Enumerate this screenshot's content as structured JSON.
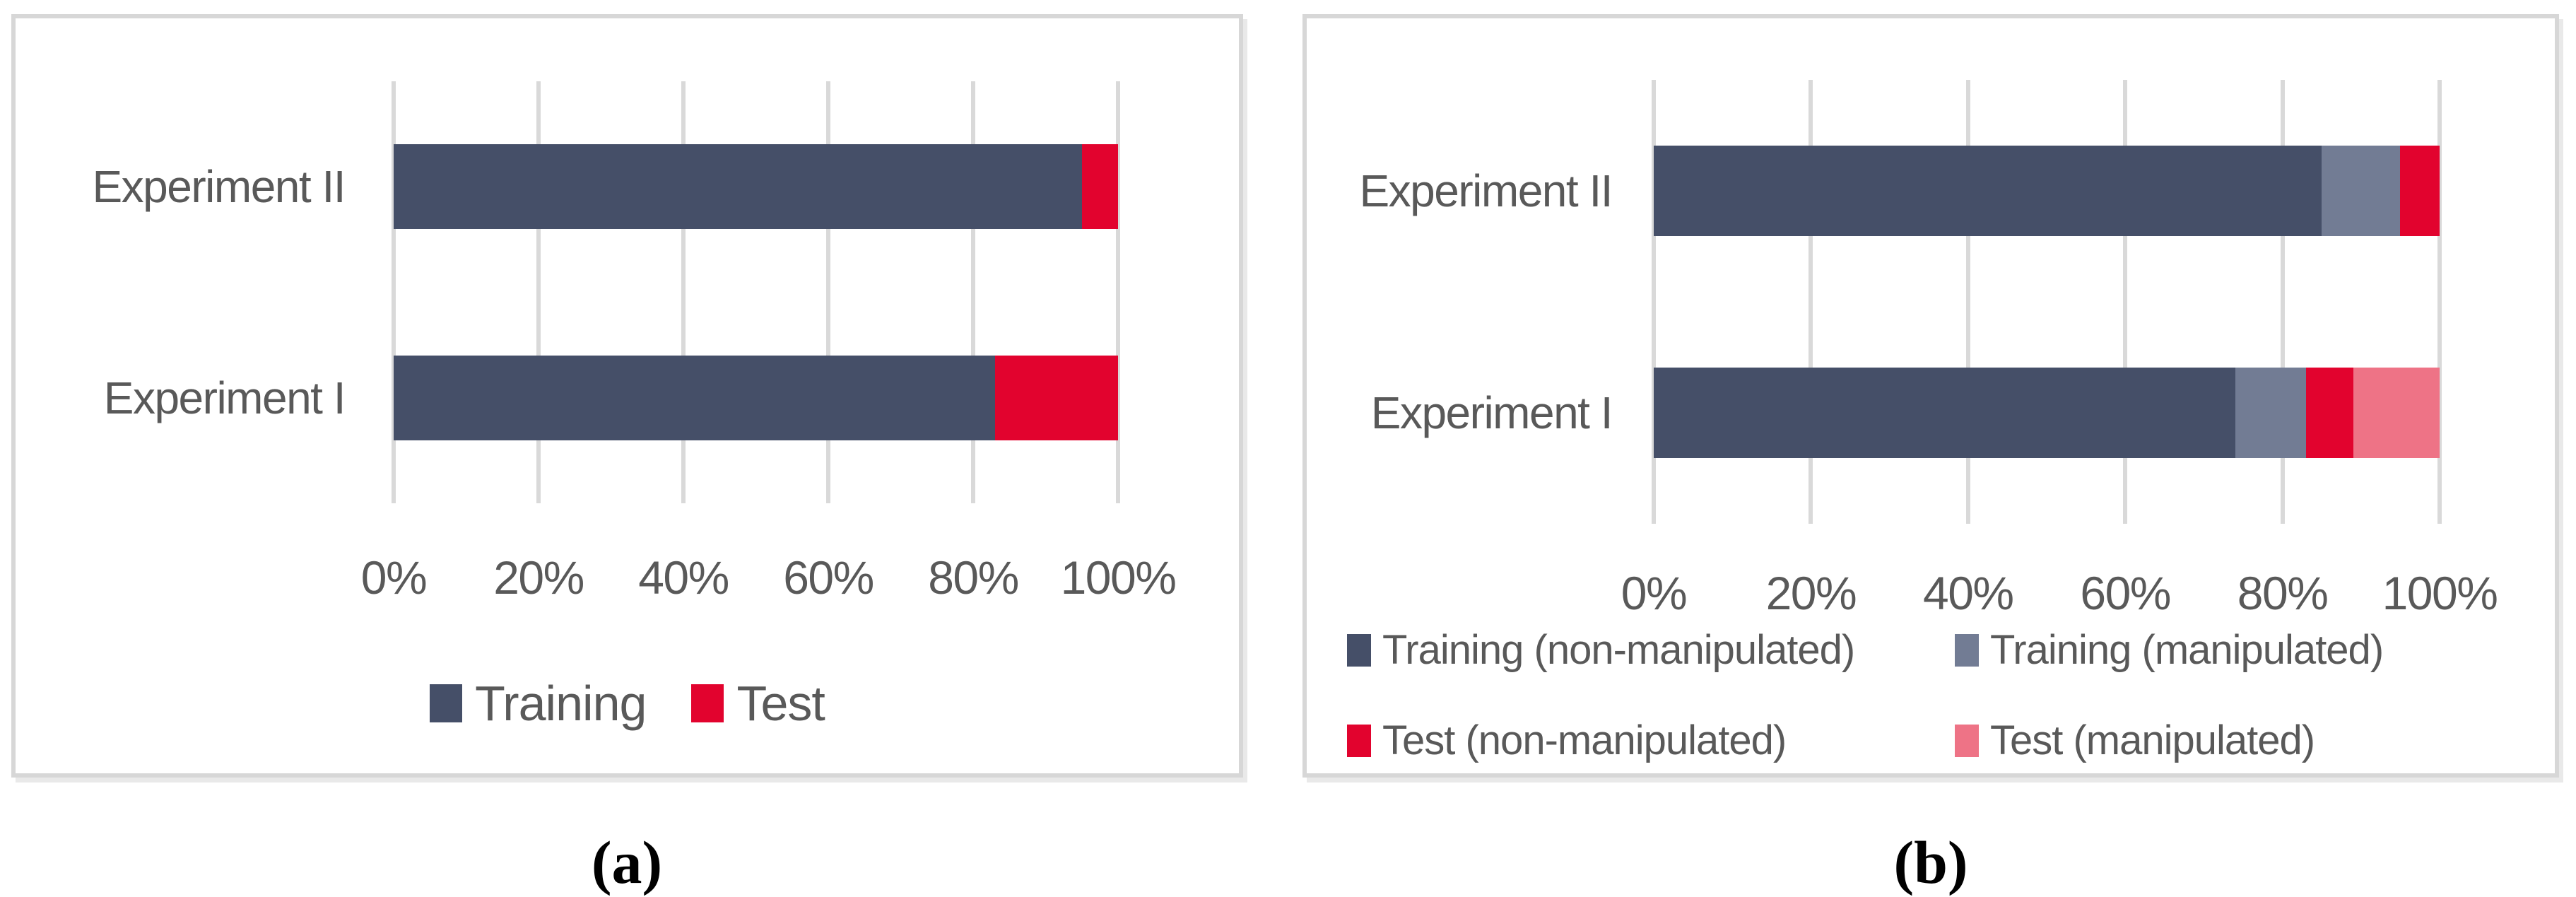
{
  "page": {
    "background": "#FFFFFF",
    "text_color": "#595959"
  },
  "captions": [
    {
      "label": "(a)"
    },
    {
      "label": "(b)"
    }
  ],
  "chart_data": [
    {
      "type": "bar",
      "orientation": "horizontal",
      "stacked": true,
      "title": "",
      "xlabel": "",
      "ylabel": "",
      "categories": [
        "Experiment II",
        "Experiment I"
      ],
      "series": [
        {
          "name": "Training",
          "color": "#454F68",
          "values": [
            95,
            83
          ]
        },
        {
          "name": "Test",
          "color": "#E2032E",
          "values": [
            5,
            17
          ]
        }
      ],
      "x_ticks": [
        "0%",
        "20%",
        "40%",
        "60%",
        "80%",
        "100%"
      ],
      "xlim": [
        0,
        100
      ],
      "grid": true,
      "legend_position": "bottom-center",
      "axis_text_color": "#595959",
      "gridline_color": "#D9D9D9",
      "panel_border_color": "#D7D7D7"
    },
    {
      "type": "bar",
      "orientation": "horizontal",
      "stacked": true,
      "title": "",
      "xlabel": "",
      "ylabel": "",
      "categories": [
        "Experiment II",
        "Experiment I"
      ],
      "series": [
        {
          "name": "Training (non-manipulated)",
          "color": "#454F68",
          "values": [
            85,
            74
          ]
        },
        {
          "name": "Training (manipulated)",
          "color": "#727C94",
          "values": [
            10,
            9
          ]
        },
        {
          "name": "Test (non-manipulated)",
          "color": "#E2032E",
          "values": [
            5,
            6
          ]
        },
        {
          "name": "Test (manipulated)",
          "color": "#EE7386",
          "values": [
            0,
            11
          ]
        }
      ],
      "x_ticks": [
        "0%",
        "20%",
        "40%",
        "60%",
        "80%",
        "100%"
      ],
      "xlim": [
        0,
        100
      ],
      "grid": true,
      "legend_position": "bottom-two-column",
      "axis_text_color": "#595959",
      "gridline_color": "#D9D9D9",
      "panel_border_color": "#D7D7D7"
    }
  ]
}
